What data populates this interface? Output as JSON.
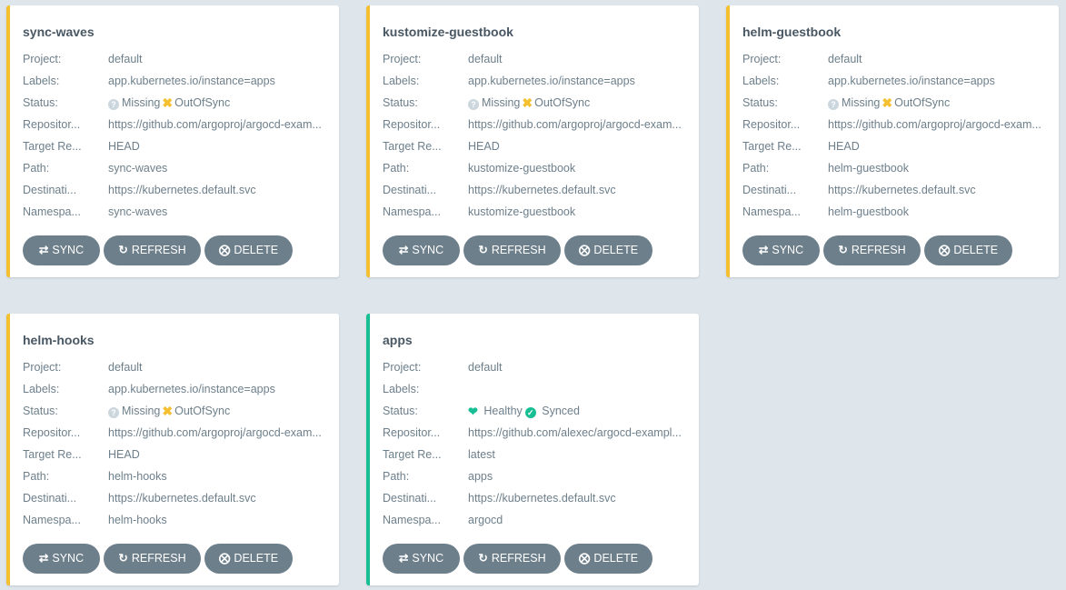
{
  "field_labels": {
    "project": "Project:",
    "labels": "Labels:",
    "status": "Status:",
    "repo": "Repositor...",
    "target": "Target Re...",
    "path": "Path:",
    "dest": "Destinati...",
    "namespace": "Namespa..."
  },
  "buttons": {
    "sync": "SYNC",
    "refresh": "REFRESH",
    "delete": "DELETE"
  },
  "colors": {
    "out_of_sync": "#f4c030",
    "synced": "#18be94",
    "button": "#6d7f8b",
    "background": "#dee6eb"
  },
  "apps": [
    {
      "name": "sync-waves",
      "project": "default",
      "labels": "app.kubernetes.io/instance=apps",
      "health": "Missing",
      "sync": "OutOfSync",
      "repo": "https://github.com/argoproj/argocd-exam...",
      "target": "HEAD",
      "path": "sync-waves",
      "dest": "https://kubernetes.default.svc",
      "namespace": "sync-waves"
    },
    {
      "name": "kustomize-guestbook",
      "project": "default",
      "labels": "app.kubernetes.io/instance=apps",
      "health": "Missing",
      "sync": "OutOfSync",
      "repo": "https://github.com/argoproj/argocd-exam...",
      "target": "HEAD",
      "path": "kustomize-guestbook",
      "dest": "https://kubernetes.default.svc",
      "namespace": "kustomize-guestbook"
    },
    {
      "name": "helm-guestbook",
      "project": "default",
      "labels": "app.kubernetes.io/instance=apps",
      "health": "Missing",
      "sync": "OutOfSync",
      "repo": "https://github.com/argoproj/argocd-exam...",
      "target": "HEAD",
      "path": "helm-guestbook",
      "dest": "https://kubernetes.default.svc",
      "namespace": "helm-guestbook"
    },
    {
      "name": "helm-hooks",
      "project": "default",
      "labels": "app.kubernetes.io/instance=apps",
      "health": "Missing",
      "sync": "OutOfSync",
      "repo": "https://github.com/argoproj/argocd-exam...",
      "target": "HEAD",
      "path": "helm-hooks",
      "dest": "https://kubernetes.default.svc",
      "namespace": "helm-hooks"
    },
    {
      "name": "apps",
      "project": "default",
      "labels": "",
      "health": "Healthy",
      "sync": "Synced",
      "repo": "https://github.com/alexec/argocd-exampl...",
      "target": "latest",
      "path": "apps",
      "dest": "https://kubernetes.default.svc",
      "namespace": "argocd"
    }
  ]
}
